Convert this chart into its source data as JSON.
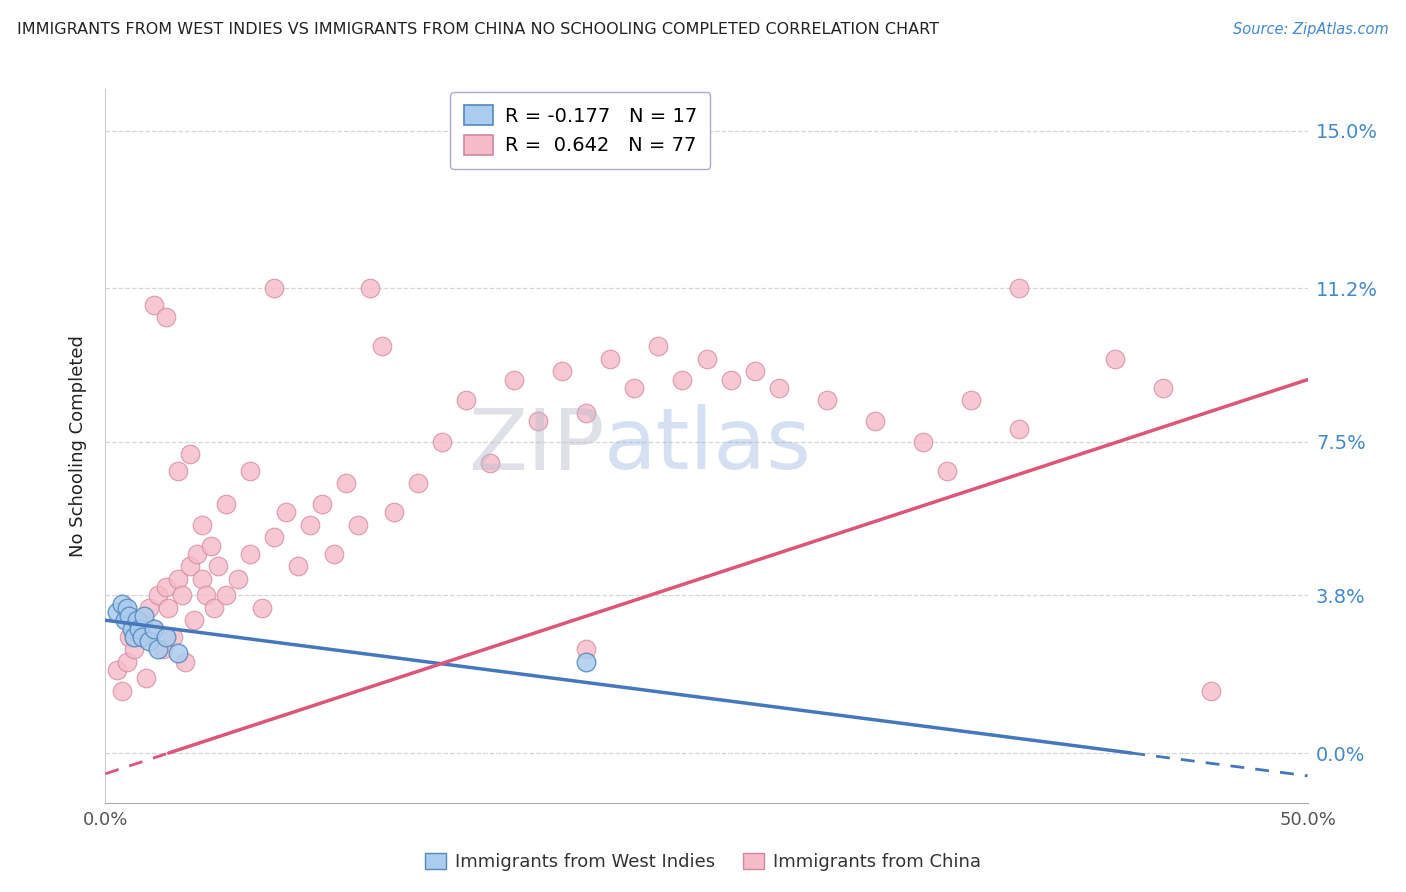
{
  "title": "IMMIGRANTS FROM WEST INDIES VS IMMIGRANTS FROM CHINA NO SCHOOLING COMPLETED CORRELATION CHART",
  "source": "Source: ZipAtlas.com",
  "ylabel": "No Schooling Completed",
  "yticks": [
    0.0,
    0.038,
    0.075,
    0.112,
    0.15
  ],
  "ytick_labels": [
    "0.0%",
    "3.8%",
    "7.5%",
    "11.2%",
    "15.0%"
  ],
  "xlim": [
    0.0,
    0.5
  ],
  "ylim": [
    -0.012,
    0.16
  ],
  "xtick_vals": [
    0.0,
    0.5
  ],
  "xtick_labels": [
    "0.0%",
    "50.0%"
  ],
  "watermark_zip": "ZIP",
  "watermark_atlas": "atlas",
  "legend_r1": "R = -0.177",
  "legend_n1": "N = 17",
  "legend_r2": "R =  0.642",
  "legend_n2": "N = 77",
  "series1_facecolor": "#aaccee",
  "series1_edgecolor": "#5588bb",
  "series2_facecolor": "#f5bbc8",
  "series2_edgecolor": "#d088a0",
  "trendline1_color": "#4477bb",
  "trendline2_color": "#dd5577",
  "grid_color": "#cccccc",
  "title_color": "#222222",
  "source_color": "#4488cc",
  "right_tick_color": "#4488cc",
  "bottom_label_color": "#333333",
  "legend_label_color_1": "#4488cc",
  "legend_label_color_2": "#dd5577",
  "west_indies_x": [
    0.005,
    0.007,
    0.008,
    0.009,
    0.01,
    0.011,
    0.012,
    0.013,
    0.014,
    0.015,
    0.016,
    0.018,
    0.02,
    0.022,
    0.025,
    0.03,
    0.2
  ],
  "west_indies_y": [
    0.034,
    0.036,
    0.032,
    0.035,
    0.033,
    0.03,
    0.028,
    0.032,
    0.03,
    0.028,
    0.033,
    0.027,
    0.03,
    0.025,
    0.028,
    0.024,
    0.022
  ],
  "china_x": [
    0.005,
    0.007,
    0.009,
    0.01,
    0.012,
    0.013,
    0.015,
    0.016,
    0.017,
    0.018,
    0.02,
    0.022,
    0.024,
    0.025,
    0.026,
    0.028,
    0.03,
    0.032,
    0.033,
    0.035,
    0.037,
    0.038,
    0.04,
    0.042,
    0.044,
    0.045,
    0.047,
    0.05,
    0.055,
    0.06,
    0.065,
    0.07,
    0.075,
    0.08,
    0.085,
    0.09,
    0.095,
    0.1,
    0.105,
    0.11,
    0.115,
    0.12,
    0.13,
    0.14,
    0.15,
    0.16,
    0.17,
    0.18,
    0.19,
    0.2,
    0.21,
    0.22,
    0.23,
    0.24,
    0.25,
    0.26,
    0.27,
    0.28,
    0.3,
    0.32,
    0.34,
    0.36,
    0.38,
    0.42,
    0.44,
    0.46,
    0.02,
    0.025,
    0.03,
    0.035,
    0.04,
    0.05,
    0.06,
    0.07,
    0.35,
    0.38,
    0.2
  ],
  "china_y": [
    0.02,
    0.015,
    0.022,
    0.028,
    0.025,
    0.03,
    0.028,
    0.032,
    0.018,
    0.035,
    0.03,
    0.038,
    0.025,
    0.04,
    0.035,
    0.028,
    0.042,
    0.038,
    0.022,
    0.045,
    0.032,
    0.048,
    0.042,
    0.038,
    0.05,
    0.035,
    0.045,
    0.038,
    0.042,
    0.048,
    0.035,
    0.052,
    0.058,
    0.045,
    0.055,
    0.06,
    0.048,
    0.065,
    0.055,
    0.112,
    0.098,
    0.058,
    0.065,
    0.075,
    0.085,
    0.07,
    0.09,
    0.08,
    0.092,
    0.082,
    0.095,
    0.088,
    0.098,
    0.09,
    0.095,
    0.09,
    0.092,
    0.088,
    0.085,
    0.08,
    0.075,
    0.085,
    0.078,
    0.095,
    0.088,
    0.015,
    0.108,
    0.105,
    0.068,
    0.072,
    0.055,
    0.06,
    0.068,
    0.112,
    0.068,
    0.112,
    0.025
  ]
}
